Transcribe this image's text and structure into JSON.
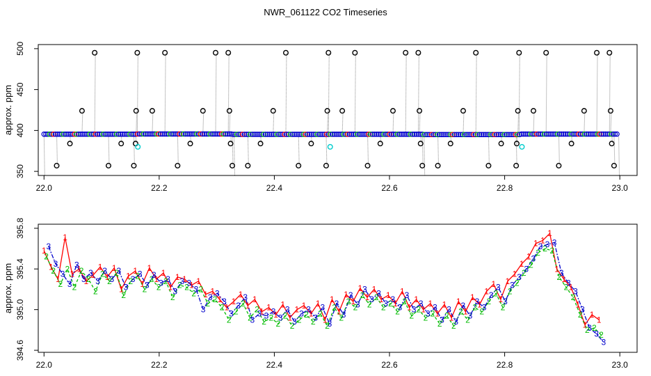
{
  "figure": {
    "title": "NWR_061122  CO2 Timeseries",
    "colors": {
      "series1": "#ff0000",
      "series2": "#00bb00",
      "series3": "#0000cc",
      "flag": "#00cccc",
      "spike": "#000000",
      "stem": "#888888"
    }
  },
  "chart_data": [
    {
      "type": "scatter",
      "panel": "top",
      "title": "",
      "xlabel": "",
      "ylabel": "approx. ppm",
      "xlim": [
        21.99,
        23.03
      ],
      "ylim": [
        345,
        505
      ],
      "x_ticks": [
        "22.0",
        "22.2",
        "22.4",
        "22.6",
        "22.8",
        "23.0"
      ],
      "x_tick_values": [
        22.0,
        22.2,
        22.4,
        22.6,
        22.8,
        23.0
      ],
      "y_ticks": [
        "350",
        "400",
        "450",
        "500"
      ],
      "y_tick_values": [
        350,
        400,
        450,
        500
      ],
      "baseline": {
        "value": 395.5,
        "x_start": 22.0,
        "x_end": 22.995
      },
      "baseline_steps": [
        {
          "x": 22.162,
          "value": 395.7
        },
        {
          "x": 22.326,
          "value": 395.3
        },
        {
          "x": 22.495,
          "value": 395.4
        },
        {
          "x": 22.658,
          "value": 395.0
        },
        {
          "x": 22.826,
          "value": 395.6
        }
      ],
      "spikes": [
        {
          "x": 22.022,
          "y": 357
        },
        {
          "x": 22.045,
          "y": 384
        },
        {
          "x": 22.066,
          "y": 424
        },
        {
          "x": 22.088,
          "y": 495
        },
        {
          "x": 22.112,
          "y": 357
        },
        {
          "x": 22.134,
          "y": 384
        },
        {
          "x": 22.156,
          "y": 357
        },
        {
          "x": 22.16,
          "y": 424
        },
        {
          "x": 22.162,
          "y": 495
        },
        {
          "x": 22.159,
          "y": 384
        },
        {
          "x": 22.188,
          "y": 424
        },
        {
          "x": 22.21,
          "y": 495
        },
        {
          "x": 22.232,
          "y": 357
        },
        {
          "x": 22.254,
          "y": 384
        },
        {
          "x": 22.276,
          "y": 424
        },
        {
          "x": 22.298,
          "y": 495
        },
        {
          "x": 22.32,
          "y": 495
        },
        {
          "x": 22.322,
          "y": 424
        },
        {
          "x": 22.324,
          "y": 384
        },
        {
          "x": 22.327,
          "y": 357
        },
        {
          "x": 22.354,
          "y": 357
        },
        {
          "x": 22.376,
          "y": 384
        },
        {
          "x": 22.398,
          "y": 424
        },
        {
          "x": 22.42,
          "y": 495
        },
        {
          "x": 22.442,
          "y": 357
        },
        {
          "x": 22.464,
          "y": 384
        },
        {
          "x": 22.49,
          "y": 357
        },
        {
          "x": 22.492,
          "y": 424
        },
        {
          "x": 22.494,
          "y": 495
        },
        {
          "x": 22.518,
          "y": 424
        },
        {
          "x": 22.54,
          "y": 495
        },
        {
          "x": 22.562,
          "y": 357
        },
        {
          "x": 22.584,
          "y": 384
        },
        {
          "x": 22.606,
          "y": 424
        },
        {
          "x": 22.628,
          "y": 495
        },
        {
          "x": 22.65,
          "y": 495
        },
        {
          "x": 22.652,
          "y": 424
        },
        {
          "x": 22.654,
          "y": 384
        },
        {
          "x": 22.657,
          "y": 357
        },
        {
          "x": 22.684,
          "y": 357
        },
        {
          "x": 22.706,
          "y": 384
        },
        {
          "x": 22.728,
          "y": 424
        },
        {
          "x": 22.75,
          "y": 495
        },
        {
          "x": 22.772,
          "y": 357
        },
        {
          "x": 22.794,
          "y": 384
        },
        {
          "x": 22.82,
          "y": 357
        },
        {
          "x": 22.821,
          "y": 384
        },
        {
          "x": 22.823,
          "y": 424
        },
        {
          "x": 22.825,
          "y": 495
        },
        {
          "x": 22.85,
          "y": 424
        },
        {
          "x": 22.872,
          "y": 495
        },
        {
          "x": 22.894,
          "y": 357
        },
        {
          "x": 22.916,
          "y": 384
        },
        {
          "x": 22.938,
          "y": 424
        },
        {
          "x": 22.96,
          "y": 495
        },
        {
          "x": 22.982,
          "y": 495
        },
        {
          "x": 22.984,
          "y": 424
        },
        {
          "x": 22.986,
          "y": 384
        },
        {
          "x": 22.99,
          "y": 357
        }
      ],
      "flagged_points": [
        {
          "x": 22.163,
          "y": 380
        },
        {
          "x": 22.497,
          "y": 380
        },
        {
          "x": 22.83,
          "y": 380
        }
      ]
    },
    {
      "type": "line",
      "panel": "bottom",
      "title": "",
      "xlabel": "",
      "ylabel": "approx. ppm",
      "xlim": [
        21.99,
        23.03
      ],
      "ylim": [
        394.58,
        395.84
      ],
      "x_ticks": [
        "22.0",
        "22.2",
        "22.4",
        "22.6",
        "22.8",
        "23.0"
      ],
      "x_tick_values": [
        22.0,
        22.2,
        22.4,
        22.6,
        22.8,
        23.0
      ],
      "y_ticks": [
        "394.6",
        "395.0",
        "395.4",
        "395.8"
      ],
      "y_tick_values": [
        394.6,
        395.0,
        395.4,
        395.8
      ],
      "series": [
        {
          "marker": "1",
          "x_start": 22.0,
          "x_step": 0.0122,
          "values": [
            395.58,
            395.42,
            395.3,
            395.71,
            395.35,
            395.4,
            395.28,
            395.34,
            395.42,
            395.32,
            395.41,
            395.2,
            395.33,
            395.38,
            395.25,
            395.41,
            395.3,
            395.36,
            395.22,
            395.32,
            395.3,
            395.24,
            395.28,
            395.15,
            395.18,
            395.1,
            395.02,
            395.08,
            395.15,
            395.04,
            395.1,
            394.98,
            395.02,
            394.95,
            395.05,
            394.92,
            395.0,
            395.04,
            394.96,
            395.06,
            394.9,
            395.1,
            394.98,
            395.15,
            395.08,
            395.21,
            395.12,
            395.2,
            395.1,
            395.14,
            395.06,
            395.18,
            395.02,
            395.1,
            395.0,
            395.06,
            394.96,
            395.05,
            394.92,
            395.08,
            394.98,
            395.12,
            395.05,
            395.18,
            395.25,
            395.1,
            395.28,
            395.35,
            395.45,
            395.52,
            395.65,
            395.68,
            395.75,
            395.4,
            395.3,
            395.22,
            395.05,
            394.85,
            394.95,
            394.9
          ]
        },
        {
          "marker": "2",
          "x_start": 22.004,
          "x_step": 0.0122,
          "values": [
            395.52,
            395.38,
            395.25,
            395.4,
            395.22,
            395.38,
            395.3,
            395.18,
            395.35,
            395.28,
            395.36,
            395.14,
            395.28,
            395.33,
            395.2,
            395.3,
            395.22,
            395.28,
            395.12,
            395.24,
            395.22,
            395.16,
            395.2,
            395.06,
            395.1,
            395.02,
            394.9,
            394.98,
            395.06,
            394.92,
            395.0,
            394.88,
            394.92,
            394.86,
            394.94,
            394.84,
            394.9,
            394.95,
            394.88,
            394.96,
            394.84,
            395.02,
            394.92,
            395.08,
            395.02,
            395.14,
            395.05,
            395.12,
            395.02,
            395.06,
            394.98,
            395.08,
            394.94,
            395.0,
            394.92,
            394.96,
            394.86,
            394.94,
            394.84,
            394.98,
            394.9,
            395.02,
            394.98,
            395.08,
            395.16,
            395.02,
            395.18,
            395.26,
            395.36,
            395.44,
            395.56,
            395.6,
            395.58,
            395.32,
            395.22,
            395.12,
            394.95,
            394.8,
            394.82,
            394.75
          ]
        },
        {
          "marker": "3",
          "x_start": 22.008,
          "x_step": 0.0122,
          "values": [
            395.62,
            395.45,
            395.35,
            395.25,
            395.44,
            395.3,
            395.36,
            395.28,
            395.38,
            395.3,
            395.38,
            395.22,
            395.3,
            395.35,
            395.24,
            395.34,
            395.26,
            395.3,
            395.18,
            395.28,
            395.26,
            395.2,
            395.0,
            395.12,
            395.16,
            395.08,
            394.96,
            395.04,
            395.12,
            394.9,
            394.96,
            394.94,
            394.98,
            394.92,
            395.0,
            394.88,
            394.96,
            395.0,
            394.92,
            395.02,
            394.86,
            395.06,
            394.95,
            395.14,
            395.05,
            395.2,
            395.1,
            395.16,
            395.06,
            395.1,
            395.02,
            395.14,
            395.0,
            395.06,
            394.96,
            395.02,
            394.9,
            395.0,
            394.88,
            395.04,
            394.94,
            395.08,
            395.02,
            395.14,
            395.22,
            395.08,
            395.24,
            395.32,
            395.4,
            395.5,
            395.62,
            395.64,
            395.66,
            395.36,
            395.26,
            395.18,
            395.0,
            394.82,
            394.76,
            394.68
          ]
        }
      ]
    }
  ]
}
